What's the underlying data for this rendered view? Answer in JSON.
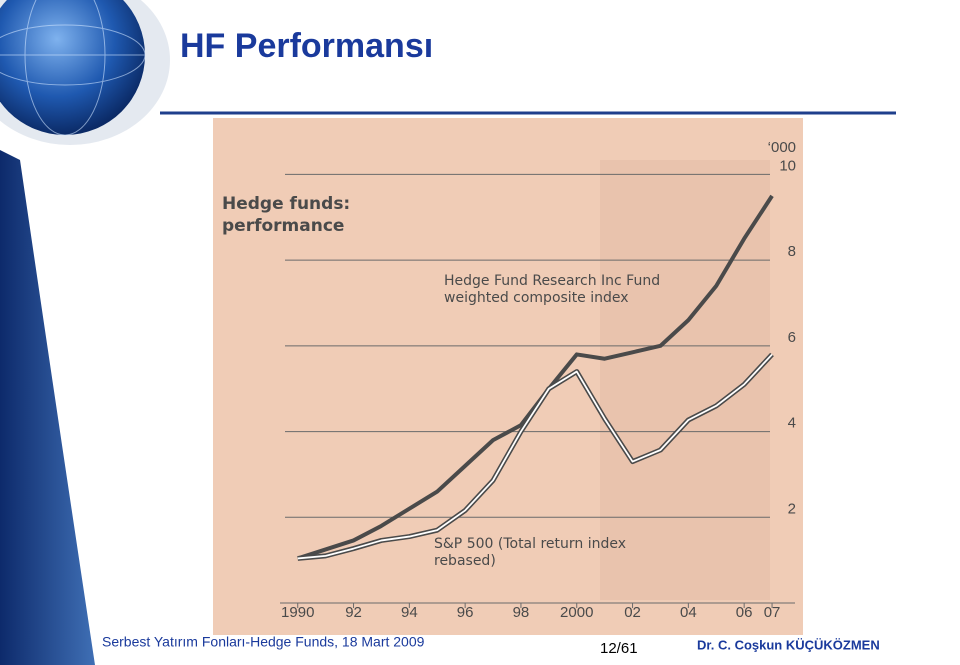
{
  "slide": {
    "title": "HF Performansı",
    "footer_left": "Serbest Yatırım Fonları-Hedge Funds, 18 Mart 2009",
    "page": "12/61",
    "author": "Dr. C. Coşkun KÜÇÜKÖZMEN"
  },
  "chart_data": {
    "type": "line",
    "title": "Hedge funds: performance",
    "y_unit": "‘000",
    "x": [
      1990,
      1991,
      1992,
      1993,
      1994,
      1995,
      1996,
      1997,
      1998,
      1999,
      2000,
      2001,
      2002,
      2003,
      2004,
      2005,
      2006,
      2007
    ],
    "series": [
      {
        "name": "Hedge Fund Research Inc Fund weighted composite index",
        "color": "#4a4a4a",
        "values": [
          1.04,
          1.25,
          1.46,
          1.8,
          2.2,
          2.6,
          3.2,
          3.8,
          4.15,
          5.0,
          5.8,
          5.7,
          5.85,
          6.0,
          6.6,
          7.4,
          8.5,
          9.5
        ]
      },
      {
        "name": "S&P 500 (Total return index rebased)",
        "color": "#ffffff",
        "values": [
          1.04,
          1.1,
          1.27,
          1.46,
          1.55,
          1.7,
          2.16,
          2.86,
          4.0,
          5.0,
          5.4,
          4.3,
          3.3,
          3.57,
          4.27,
          4.6,
          5.1,
          5.8
        ]
      }
    ],
    "xlim": [
      1989.4,
      2007.5
    ],
    "xticks": [
      {
        "value": 1990,
        "label": "1990"
      },
      {
        "value": 1992,
        "label": "92"
      },
      {
        "value": 1994,
        "label": "94"
      },
      {
        "value": 1996,
        "label": "96"
      },
      {
        "value": 1998,
        "label": "98"
      },
      {
        "value": 2000,
        "label": "2000"
      },
      {
        "value": 2002,
        "label": "02"
      },
      {
        "value": 2004,
        "label": "04"
      },
      {
        "value": 2006,
        "label": "06"
      },
      {
        "value": 2007,
        "label": "07"
      }
    ],
    "ylim": [
      0,
      10.5
    ],
    "yticks": [
      2,
      4,
      6,
      8,
      10
    ],
    "grid": true
  }
}
